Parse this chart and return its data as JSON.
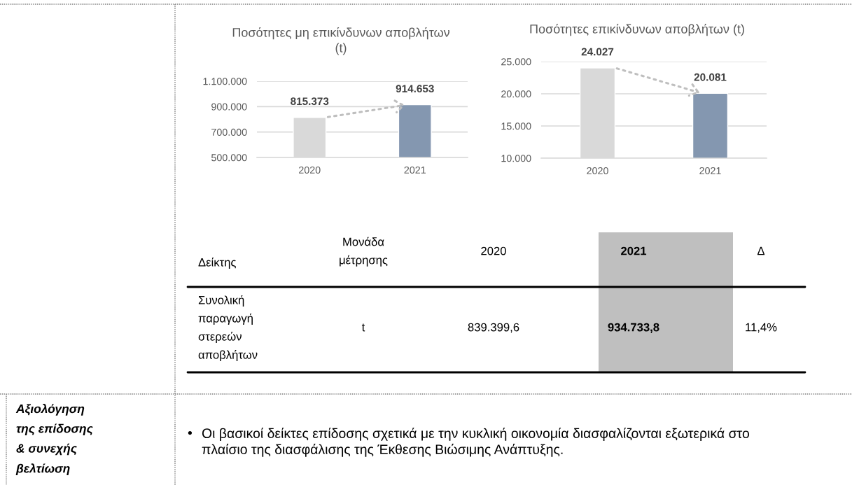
{
  "chart_data": [
    {
      "type": "bar",
      "title": "Ποσότητες μη επικίνδυνων αποβλήτων\n(t)",
      "categories": [
        "2020",
        "2021"
      ],
      "values": [
        815373,
        914653
      ],
      "colors": [
        "#d9d9d9",
        "#8497b0"
      ],
      "value_labels": [
        "815.373",
        "914.653"
      ],
      "ylim": [
        500000,
        1100000
      ],
      "yticks": [
        {
          "value": 500000,
          "label": "500.000"
        },
        {
          "value": 700000,
          "label": "700.000"
        },
        {
          "value": 900000,
          "label": "900.000"
        },
        {
          "value": 1100000,
          "label": "1.100.000"
        }
      ],
      "grid": "y"
    },
    {
      "type": "bar",
      "title": "Ποσότητες επικίνδυνων αποβλήτων (t)",
      "categories": [
        "2020",
        "2021"
      ],
      "values": [
        24027,
        20081
      ],
      "colors": [
        "#d9d9d9",
        "#8497b0"
      ],
      "value_labels": [
        "24.027",
        "20.081"
      ],
      "ylim": [
        10000,
        25000
      ],
      "yticks": [
        {
          "value": 10000,
          "label": "10.000"
        },
        {
          "value": 15000,
          "label": "15.000"
        },
        {
          "value": 20000,
          "label": "20.000"
        },
        {
          "value": 25000,
          "label": "25.000"
        }
      ],
      "grid": "y"
    },
    {
      "type": "other",
      "annotations": [
        "Δείκτης",
        "Μονάδα\nμέτρησης",
        "2020",
        "2021",
        "Δ",
        "Συνολική\nπαραγωγή\nστερεών\nαποβλήτων",
        "t",
        "839.399,6",
        "934.733,8",
        "11,4%",
        "Αξιολόγηση\nτης επίδοσης\n& συνεχής\nβελτίωση",
        "•",
        "Οι βασικοί δείκτες επίδοσης σχετικά με την κυκλική οικονομία διασφαλίζονται εξωτερικά στο\nπλαίσιο της διασφάλισης της Έκθεσης Βιώσιμης Ανάπτυξης."
      ]
    }
  ]
}
